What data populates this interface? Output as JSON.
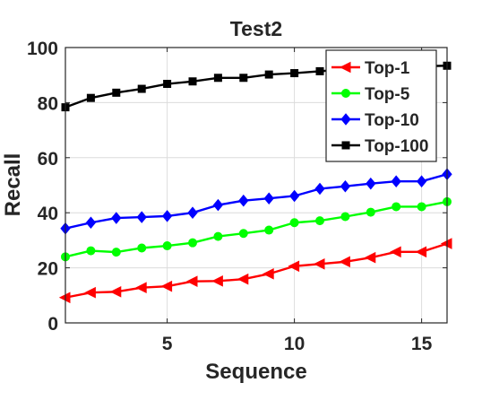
{
  "chart_data": {
    "type": "line",
    "title": "Test2",
    "xlabel": "Sequence",
    "ylabel": "Recall",
    "xlim": [
      1,
      16
    ],
    "ylim": [
      0,
      100
    ],
    "xticks": [
      5,
      10,
      15
    ],
    "yticks": [
      0,
      20,
      40,
      60,
      80,
      100
    ],
    "grid": true,
    "legend_position": "top-right",
    "x": [
      1,
      2,
      3,
      4,
      5,
      6,
      7,
      8,
      9,
      10,
      11,
      12,
      13,
      14,
      15,
      16
    ],
    "series": [
      {
        "name": "Top-1",
        "color": "#ff0000",
        "marker": "triangle-left",
        "values": [
          9.2,
          11.0,
          11.3,
          12.8,
          13.3,
          15.1,
          15.2,
          15.9,
          17.8,
          20.6,
          21.4,
          22.2,
          23.7,
          25.8,
          25.8,
          28.8
        ]
      },
      {
        "name": "Top-5",
        "color": "#00ff00",
        "marker": "circle",
        "values": [
          24.0,
          26.2,
          25.7,
          27.2,
          28.0,
          29.1,
          31.4,
          32.5,
          33.7,
          36.4,
          37.1,
          38.6,
          40.2,
          42.2,
          42.2,
          44.0
        ]
      },
      {
        "name": "Top-10",
        "color": "#0000ff",
        "marker": "diamond",
        "values": [
          34.3,
          36.4,
          38.1,
          38.4,
          38.8,
          40.0,
          42.8,
          44.4,
          45.2,
          46.1,
          48.7,
          49.6,
          50.6,
          51.4,
          51.4,
          54.0
        ]
      },
      {
        "name": "Top-100",
        "color": "#000000",
        "marker": "square",
        "values": [
          78.3,
          81.7,
          83.6,
          85.0,
          86.8,
          87.7,
          89.0,
          89.0,
          90.2,
          90.7,
          91.4,
          92.1,
          92.4,
          92.9,
          93.2,
          93.4
        ]
      }
    ]
  }
}
